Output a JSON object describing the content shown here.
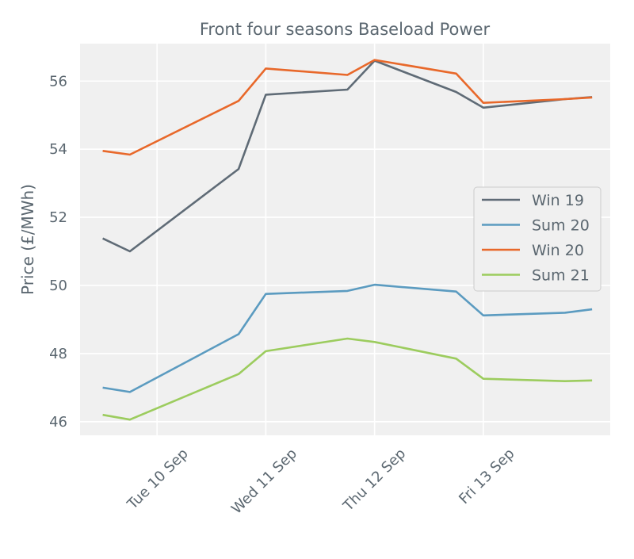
{
  "chart_data": {
    "type": "line",
    "title": "Front four seasons Baseload Power",
    "xlabel": "",
    "ylabel": "Price (£/MWh)",
    "x": [
      "2019-09-09 12:00",
      "2019-09-09 18:00",
      "2019-09-10 18:00",
      "2019-09-11 00:00",
      "2019-09-11 18:00",
      "2019-09-12 00:00",
      "2019-09-12 18:00",
      "2019-09-13 00:00",
      "2019-09-13 18:00",
      "2019-09-14 00:00"
    ],
    "x_range": [
      "2019-09-09 07:00",
      "2019-09-14 04:00"
    ],
    "x_ticks": [
      {
        "at": "2019-09-10 00:00",
        "label": "Tue 10 Sep"
      },
      {
        "at": "2019-09-11 00:00",
        "label": "Wed 11 Sep"
      },
      {
        "at": "2019-09-12 00:00",
        "label": "Thu 12 Sep"
      },
      {
        "at": "2019-09-13 00:00",
        "label": "Fri 13 Sep"
      }
    ],
    "ylim": [
      45.6,
      57.1
    ],
    "y_ticks": [
      46,
      48,
      50,
      52,
      54,
      56
    ],
    "grid": true,
    "legend_position": "center-right",
    "series": [
      {
        "name": "Win 19",
        "color": "#5f6b76",
        "values": [
          51.38,
          51.0,
          53.42,
          55.6,
          55.75,
          56.6,
          55.68,
          55.22,
          55.47,
          55.53
        ]
      },
      {
        "name": "Sum 20",
        "color": "#5b9bc0",
        "values": [
          47.0,
          46.87,
          48.57,
          49.75,
          49.84,
          50.02,
          49.82,
          49.12,
          49.2,
          49.3
        ]
      },
      {
        "name": "Win 20",
        "color": "#e8682a",
        "values": [
          53.95,
          53.84,
          55.42,
          56.37,
          56.18,
          56.62,
          56.22,
          55.36,
          55.47,
          55.52
        ]
      },
      {
        "name": "Sum 21",
        "color": "#9ccc5e",
        "values": [
          46.2,
          46.06,
          47.4,
          48.07,
          48.44,
          48.34,
          47.85,
          47.26,
          47.19,
          47.21
        ]
      }
    ]
  }
}
